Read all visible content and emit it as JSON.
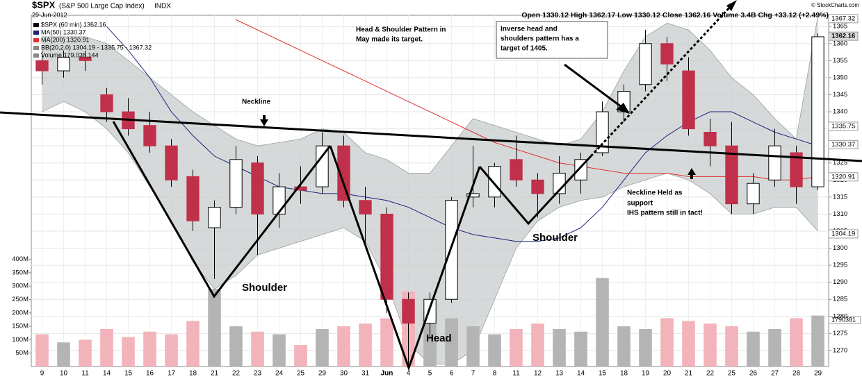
{
  "chart_data": {
    "type": "candlestick",
    "title": "$SPX",
    "subtitle": "(S&P 500 Large Cap Index)",
    "exchange": "INDX",
    "date": "29-Jun-2012",
    "quote": "Open 1330.12 High 1362.17 Low 1330.12 Close 1362.16 Volume 3.4B Chg +33.12 (+2.49%)",
    "credit": "© StockCharts.com",
    "price_name": "$SPX (60 min) 1362.16",
    "categories": [
      "9",
      "10",
      "11",
      "14",
      "15",
      "16",
      "17",
      "18",
      "21",
      "22",
      "23",
      "24",
      "25",
      "29",
      "30",
      "31",
      "Jun",
      "4",
      "5",
      "6",
      "7",
      "8",
      "11",
      "12",
      "13",
      "14",
      "15",
      "18",
      "19",
      "20",
      "21",
      "22",
      "25",
      "26",
      "27",
      "28",
      "29"
    ],
    "open": [
      1355,
      1352,
      1356,
      1345,
      1340,
      1336,
      1330,
      1321,
      1306,
      1312,
      1325,
      1310,
      1318,
      1318,
      1330,
      1314,
      1310,
      1285,
      1278,
      1285,
      1315,
      1315,
      1326,
      1320,
      1316,
      1320,
      1328,
      1340,
      1348,
      1360,
      1352,
      1334,
      1330,
      1313,
      1320,
      1328,
      1318
    ],
    "high": [
      1358,
      1358,
      1358,
      1347,
      1344,
      1340,
      1332,
      1323,
      1314,
      1330,
      1327,
      1322,
      1324,
      1334,
      1333,
      1318,
      1312,
      1287,
      1287,
      1315,
      1330,
      1325,
      1333,
      1322,
      1327,
      1328,
      1343,
      1348,
      1364,
      1362,
      1356,
      1338,
      1337,
      1322,
      1335,
      1330,
      1363
    ],
    "low": [
      1348,
      1350,
      1352,
      1337,
      1333,
      1328,
      1318,
      1305,
      1291,
      1310,
      1298,
      1306,
      1313,
      1316,
      1312,
      1300,
      1281,
      1266,
      1274,
      1284,
      1312,
      1312,
      1318,
      1309,
      1313,
      1316,
      1327,
      1337,
      1346,
      1349,
      1333,
      1324,
      1310,
      1310,
      1318,
      1313,
      1317
    ],
    "close": [
      1352,
      1356,
      1355,
      1340,
      1335,
      1330,
      1320,
      1308,
      1312,
      1326,
      1310,
      1318,
      1317,
      1330,
      1314,
      1310,
      1285,
      1278,
      1285,
      1314,
      1316,
      1324,
      1320,
      1316,
      1322,
      1326,
      1340,
      1346,
      1360,
      1354,
      1335,
      1330,
      1313,
      1319,
      1330,
      1318,
      1362
    ],
    "up_color": "#ffffff",
    "down_color": "#c0304a",
    "ylim": [
      1265.3,
      1368.3
    ],
    "yticks": [
      1270,
      1275,
      1280,
      1285,
      1290,
      1295,
      1300,
      1305,
      1310,
      1315,
      1320,
      1325,
      1330,
      1335,
      1340,
      1345,
      1350,
      1355,
      1360,
      1365
    ],
    "grid": true,
    "overlays": [
      {
        "name": "MA(50) 1330.37",
        "color": "#1a237e",
        "values": [
          null,
          null,
          null,
          1365,
          1358,
          1350,
          1340,
          1333,
          1327,
          1324,
          1321,
          1318,
          1317,
          1316,
          1316,
          1315,
          1314,
          1312,
          1309,
          1306,
          1304,
          1303,
          1302,
          1302,
          1303,
          1306,
          1312,
          1320,
          1328,
          1333,
          1337,
          1340,
          1340,
          1337,
          1334,
          1332,
          1330
        ]
      },
      {
        "name": "MA(200) 1320.91",
        "color": "#e03030",
        "values": [
          null,
          null,
          null,
          null,
          null,
          null,
          null,
          null,
          null,
          1367,
          1364,
          1361,
          1358,
          1355,
          1352,
          1349,
          1346,
          1343,
          1340,
          1337,
          1334,
          1331,
          1329,
          1327,
          1325,
          1324,
          1323,
          1322,
          1322,
          1322,
          1321,
          1321,
          1321,
          1321,
          1320,
          1320,
          1321
        ]
      }
    ],
    "bands": {
      "name": "BB(20,2.0) 1304.19 - 1335.75 - 1367.32",
      "color": "#c8cccc",
      "upper": [
        1362,
        1362,
        1362,
        1360,
        1355,
        1350,
        1345,
        1340,
        1336,
        1332,
        1330,
        1331,
        1332,
        1335,
        1334,
        1328,
        1326,
        1322,
        1322,
        1330,
        1338,
        1336,
        1334,
        1332,
        1330,
        1332,
        1340,
        1352,
        1362,
        1366,
        1364,
        1358,
        1350,
        1345,
        1338,
        1332,
        1368
      ],
      "lower": [
        1340,
        1343,
        1340,
        1335,
        1328,
        1318,
        1308,
        1296,
        1288,
        1292,
        1298,
        1300,
        1302,
        1304,
        1306,
        1302,
        1290,
        1272,
        1266,
        1266,
        1270,
        1285,
        1300,
        1308,
        1312,
        1314,
        1315,
        1318,
        1320,
        1322,
        1320,
        1316,
        1310,
        1310,
        1312,
        1312,
        1305
      ]
    },
    "volume": {
      "name": "Volume 179,038,144",
      "values": [
        120,
        90,
        100,
        140,
        110,
        130,
        120,
        170,
        290,
        150,
        130,
        120,
        80,
        140,
        150,
        160,
        180,
        280,
        200,
        180,
        150,
        120,
        140,
        160,
        140,
        130,
        330,
        150,
        140,
        180,
        170,
        160,
        150,
        130,
        140,
        180,
        190
      ],
      "up_color": "#b4b4b4",
      "down_color": "#f2b3bb",
      "ylim": [
        0,
        1310
      ],
      "yticks": [
        {
          "value": 50,
          "label": "50M"
        },
        {
          "value": 100,
          "label": "100M"
        },
        {
          "value": 150,
          "label": "150M"
        },
        {
          "value": 200,
          "label": "200M"
        },
        {
          "value": 250,
          "label": "250M"
        },
        {
          "value": 300,
          "label": "300M"
        },
        {
          "value": 350,
          "label": "350M"
        },
        {
          "value": 400,
          "label": "400M"
        }
      ],
      "tag": "1790381"
    },
    "tags": [
      1367.32,
      1362.16,
      1335.75,
      1330.37,
      1320.91,
      1304.19
    ],
    "annotations": {
      "hs_target": [
        "Head & Shoulder Pattern in",
        "May made its target."
      ],
      "ihs_target": [
        "Inverse head and",
        "shoulders pattern has a",
        "target of 1405."
      ],
      "neckline": "Neckline",
      "left_shoulder": "Shoulder",
      "head": "Head",
      "right_shoulder": "Shoulder",
      "held": [
        "Neckline Held as",
        "support",
        "IHS pattern still in tact!"
      ]
    }
  }
}
